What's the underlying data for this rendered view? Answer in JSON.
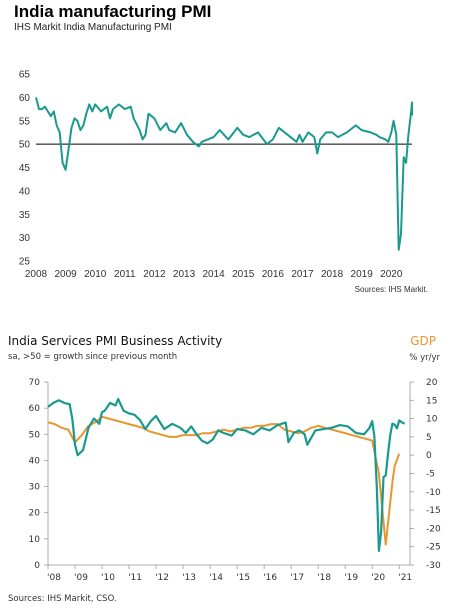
{
  "chart1": {
    "title": "India manufacturing PMI",
    "subtitle": "IHS Markit  India Manufacturing  PMI",
    "source": "Sources: IHS Markit.",
    "colors": {
      "line": "#1a9a8e",
      "ref": "#000000"
    }
  },
  "chart2": {
    "title": "India Services PMI Business Activity",
    "subtitle": "sa, >50 = growth since previous month",
    "right_title": "GDP",
    "right_unit": "% yr/yr",
    "source": "Sources: IHS Markit, CSO.",
    "colors": {
      "pmi": "#1a9a8e",
      "gdp": "#e8962e"
    }
  },
  "chart_data": [
    {
      "type": "line",
      "title": "India manufacturing PMI",
      "subtitle": "IHS Markit  India Manufacturing  PMI",
      "ylim": [
        25,
        65
      ],
      "yticks": [
        25,
        30,
        35,
        40,
        45,
        50,
        55,
        60,
        65
      ],
      "xlim": [
        2008,
        2020.7
      ],
      "xticks": [
        2008,
        2009,
        2010,
        2011,
        2012,
        2013,
        2014,
        2015,
        2016,
        2017,
        2018,
        2019,
        2020
      ],
      "reference_line": 50,
      "series": [
        {
          "x": [
            2008.0,
            2008.1,
            2008.2,
            2008.3,
            2008.5,
            2008.6,
            2008.7,
            2008.8,
            2008.9,
            2009.0,
            2009.1,
            2009.2,
            2009.3,
            2009.4,
            2009.5,
            2009.6,
            2009.7,
            2009.8,
            2009.9,
            2010.0,
            2010.2,
            2010.4,
            2010.5,
            2010.6,
            2010.8,
            2011.0,
            2011.2,
            2011.3,
            2011.5,
            2011.6,
            2011.7,
            2011.8,
            2012.0,
            2012.2,
            2012.4,
            2012.5,
            2012.7,
            2012.9,
            2013.1,
            2013.3,
            2013.5,
            2013.6,
            2013.8,
            2014.0,
            2014.2,
            2014.5,
            2014.8,
            2015.0,
            2015.2,
            2015.5,
            2015.8,
            2016.0,
            2016.2,
            2016.5,
            2016.8,
            2016.9,
            2017.0,
            2017.2,
            2017.4,
            2017.5,
            2017.6,
            2017.8,
            2018.0,
            2018.2,
            2018.5,
            2018.8,
            2019.0,
            2019.3,
            2019.5,
            2019.6,
            2019.8,
            2019.9,
            2020.0,
            2020.08,
            2020.17,
            2020.25,
            2020.33,
            2020.42,
            2020.5,
            2020.58,
            2020.67,
            2020.75,
            2020.83,
            2020.92,
            2021.0
          ],
          "y": [
            60.0,
            57.5,
            57.5,
            58.0,
            56.0,
            57.0,
            54.0,
            52.5,
            46.0,
            44.5,
            49.0,
            53.5,
            55.5,
            55.0,
            53.0,
            54.0,
            56.5,
            58.5,
            57.0,
            58.5,
            57.0,
            58.0,
            55.5,
            57.5,
            58.5,
            57.5,
            58.0,
            55.5,
            53.0,
            51.0,
            52.0,
            56.5,
            55.5,
            53.0,
            54.5,
            53.0,
            52.5,
            54.5,
            52.0,
            50.5,
            49.5,
            50.5,
            51.0,
            51.5,
            53.0,
            51.0,
            53.5,
            52.0,
            51.5,
            52.5,
            50.0,
            51.0,
            53.5,
            52.0,
            50.5,
            52.0,
            50.5,
            52.5,
            51.5,
            48.0,
            51.0,
            52.5,
            52.5,
            51.5,
            52.5,
            54.0,
            53.0,
            52.5,
            52.0,
            51.5,
            51.0,
            50.5,
            52.5,
            55.0,
            52.0,
            27.4,
            30.8,
            47.2,
            46.0,
            52.0,
            56.8,
            58.9,
            56.3,
            56.4,
            57.7
          ]
        }
      ]
    },
    {
      "type": "line",
      "title": "India Services PMI Business Activity",
      "subtitle": "sa, >50 = growth since previous month",
      "ylim_left": [
        0,
        70
      ],
      "yticks_left": [
        0,
        10,
        20,
        30,
        40,
        50,
        60,
        70
      ],
      "ylim_right": [
        -30,
        20
      ],
      "yticks_right": [
        -30,
        -25,
        -20,
        -15,
        -10,
        -5,
        0,
        5,
        10,
        15,
        20
      ],
      "ylabel_right": "GDP",
      "xticks": [
        "'08",
        "'09",
        "'10",
        "'11",
        "'12",
        "'13",
        "'14",
        "'15",
        "'16",
        "'17",
        "'18",
        "'19",
        "'20",
        "'21"
      ],
      "xlim": [
        2008,
        2021.4
      ],
      "series": [
        {
          "axis": "left",
          "x": [
            2008.0,
            2008.2,
            2008.4,
            2008.6,
            2008.8,
            2008.9,
            2009.0,
            2009.1,
            2009.3,
            2009.5,
            2009.7,
            2009.9,
            2010.0,
            2010.1,
            2010.3,
            2010.5,
            2010.6,
            2010.8,
            2011.0,
            2011.2,
            2011.4,
            2011.6,
            2011.8,
            2012.0,
            2012.3,
            2012.6,
            2012.9,
            2013.1,
            2013.3,
            2013.5,
            2013.7,
            2013.9,
            2014.1,
            2014.3,
            2014.5,
            2014.8,
            2015.0,
            2015.3,
            2015.6,
            2015.9,
            2016.2,
            2016.5,
            2016.8,
            2016.9,
            2017.1,
            2017.3,
            2017.5,
            2017.6,
            2017.9,
            2018.2,
            2018.5,
            2018.8,
            2019.1,
            2019.4,
            2019.7,
            2019.9,
            2020.0,
            2020.08,
            2020.17,
            2020.25,
            2020.33,
            2020.42,
            2020.5,
            2020.58,
            2020.67,
            2020.75,
            2020.83,
            2020.92,
            2021.0,
            2021.1,
            2021.2
          ],
          "y": [
            60.5,
            62.0,
            63.0,
            62.0,
            61.5,
            56.0,
            46.0,
            42.0,
            44.0,
            52.5,
            56.0,
            54.0,
            58.5,
            59.0,
            62.0,
            61.0,
            63.5,
            59.0,
            58.0,
            57.5,
            55.5,
            52.0,
            55.0,
            57.0,
            52.0,
            54.0,
            52.5,
            50.5,
            53.0,
            50.0,
            47.5,
            46.5,
            48.0,
            51.5,
            50.5,
            49.5,
            52.0,
            51.5,
            50.0,
            52.5,
            51.5,
            53.5,
            54.5,
            47.0,
            50.5,
            51.5,
            50.0,
            46.0,
            51.5,
            52.0,
            52.5,
            53.5,
            53.0,
            50.5,
            50.0,
            52.5,
            55.0,
            49.5,
            30.0,
            5.4,
            12.6,
            33.7,
            34.2,
            41.8,
            49.8,
            54.1,
            53.7,
            52.3,
            55.3,
            54.6,
            54.0
          ]
        },
        {
          "axis": "right",
          "x": [
            2008.0,
            2008.25,
            2008.5,
            2008.75,
            2009.0,
            2009.25,
            2009.5,
            2009.75,
            2010.0,
            2010.25,
            2010.5,
            2010.75,
            2011.0,
            2011.25,
            2011.5,
            2011.75,
            2012.0,
            2012.25,
            2012.5,
            2012.75,
            2013.0,
            2013.25,
            2013.5,
            2013.75,
            2014.0,
            2014.25,
            2014.5,
            2014.75,
            2015.0,
            2015.25,
            2015.5,
            2015.75,
            2016.0,
            2016.25,
            2016.5,
            2016.75,
            2017.0,
            2017.25,
            2017.5,
            2017.75,
            2018.0,
            2018.25,
            2018.5,
            2018.75,
            2019.0,
            2019.25,
            2019.5,
            2019.75,
            2020.0,
            2020.25,
            2020.5,
            2020.75,
            2020.83,
            2021.0
          ],
          "y": [
            9.0,
            8.5,
            7.5,
            7.0,
            3.5,
            5.5,
            8.0,
            9.0,
            10.5,
            10.0,
            9.5,
            9.0,
            8.5,
            8.0,
            7.5,
            6.5,
            6.0,
            5.5,
            5.0,
            5.0,
            5.5,
            5.5,
            5.5,
            6.0,
            6.0,
            6.5,
            7.0,
            6.5,
            7.0,
            7.5,
            7.5,
            8.0,
            8.0,
            8.5,
            8.5,
            7.0,
            6.5,
            6.0,
            6.5,
            7.5,
            8.0,
            7.5,
            7.0,
            6.5,
            6.0,
            5.5,
            5.0,
            4.5,
            4.0,
            -5.0,
            -24.4,
            -7.4,
            -3.0,
            0.4
          ]
        }
      ]
    }
  ]
}
